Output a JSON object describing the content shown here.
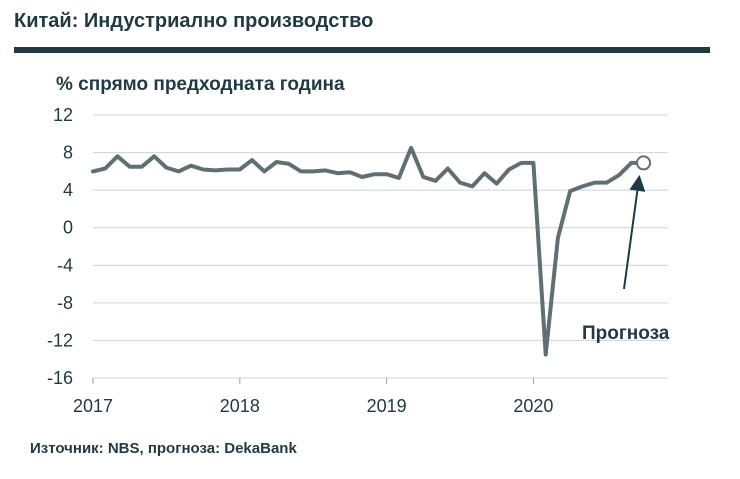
{
  "header": {
    "title": "Китай: Индустриално производство"
  },
  "footer": {
    "source": "Източник: NBS, прогноза: DekaBank"
  },
  "chart_data": {
    "type": "line",
    "title": "Китай: Индустриално производство",
    "ylabel": "% спрямо предходната година",
    "xlabel": "",
    "ylim": [
      -16,
      12
    ],
    "yticks": [
      12,
      8,
      4,
      0,
      -4,
      -8,
      -12,
      -16
    ],
    "ytick_labels": [
      "12",
      "8",
      "4",
      "0",
      "-4",
      "-8",
      "-12",
      "-16"
    ],
    "xlim": [
      "2017-01",
      "2020-12"
    ],
    "xticks": [
      "2017",
      "2018",
      "2019",
      "2020"
    ],
    "grid": true,
    "line_color": "#5f6f76",
    "accent_color": "#1f3a44",
    "series": [
      {
        "x": [
          "2017-01",
          "2017-02",
          "2017-03",
          "2017-04",
          "2017-05",
          "2017-06",
          "2017-07",
          "2017-08",
          "2017-09",
          "2017-10",
          "2017-11",
          "2017-12",
          "2018-01",
          "2018-02",
          "2018-03",
          "2018-04",
          "2018-05",
          "2018-06",
          "2018-07",
          "2018-08",
          "2018-09",
          "2018-10",
          "2018-11",
          "2018-12",
          "2019-01",
          "2019-02",
          "2019-03",
          "2019-04",
          "2019-05",
          "2019-06",
          "2019-07",
          "2019-08",
          "2019-09",
          "2019-10",
          "2019-11",
          "2019-12",
          "2020-01",
          "2020-02",
          "2020-03",
          "2020-04",
          "2020-05",
          "2020-06",
          "2020-07",
          "2020-08",
          "2020-09",
          "2020-10"
        ],
        "values": [
          6.0,
          6.3,
          7.6,
          6.5,
          6.5,
          7.6,
          6.4,
          6.0,
          6.6,
          6.2,
          6.1,
          6.2,
          6.2,
          7.2,
          6.0,
          7.0,
          6.8,
          6.0,
          6.0,
          6.1,
          5.8,
          5.9,
          5.4,
          5.7,
          5.7,
          5.3,
          8.5,
          5.4,
          5.0,
          6.3,
          4.8,
          4.4,
          5.8,
          4.7,
          6.2,
          6.9,
          6.9,
          -13.5,
          -1.1,
          3.9,
          4.4,
          4.8,
          4.8,
          5.6,
          6.9,
          6.9
        ]
      }
    ],
    "forecast_point": {
      "x": "2020-10",
      "value": 6.9
    },
    "annotation": {
      "text": "Прогноза"
    }
  }
}
